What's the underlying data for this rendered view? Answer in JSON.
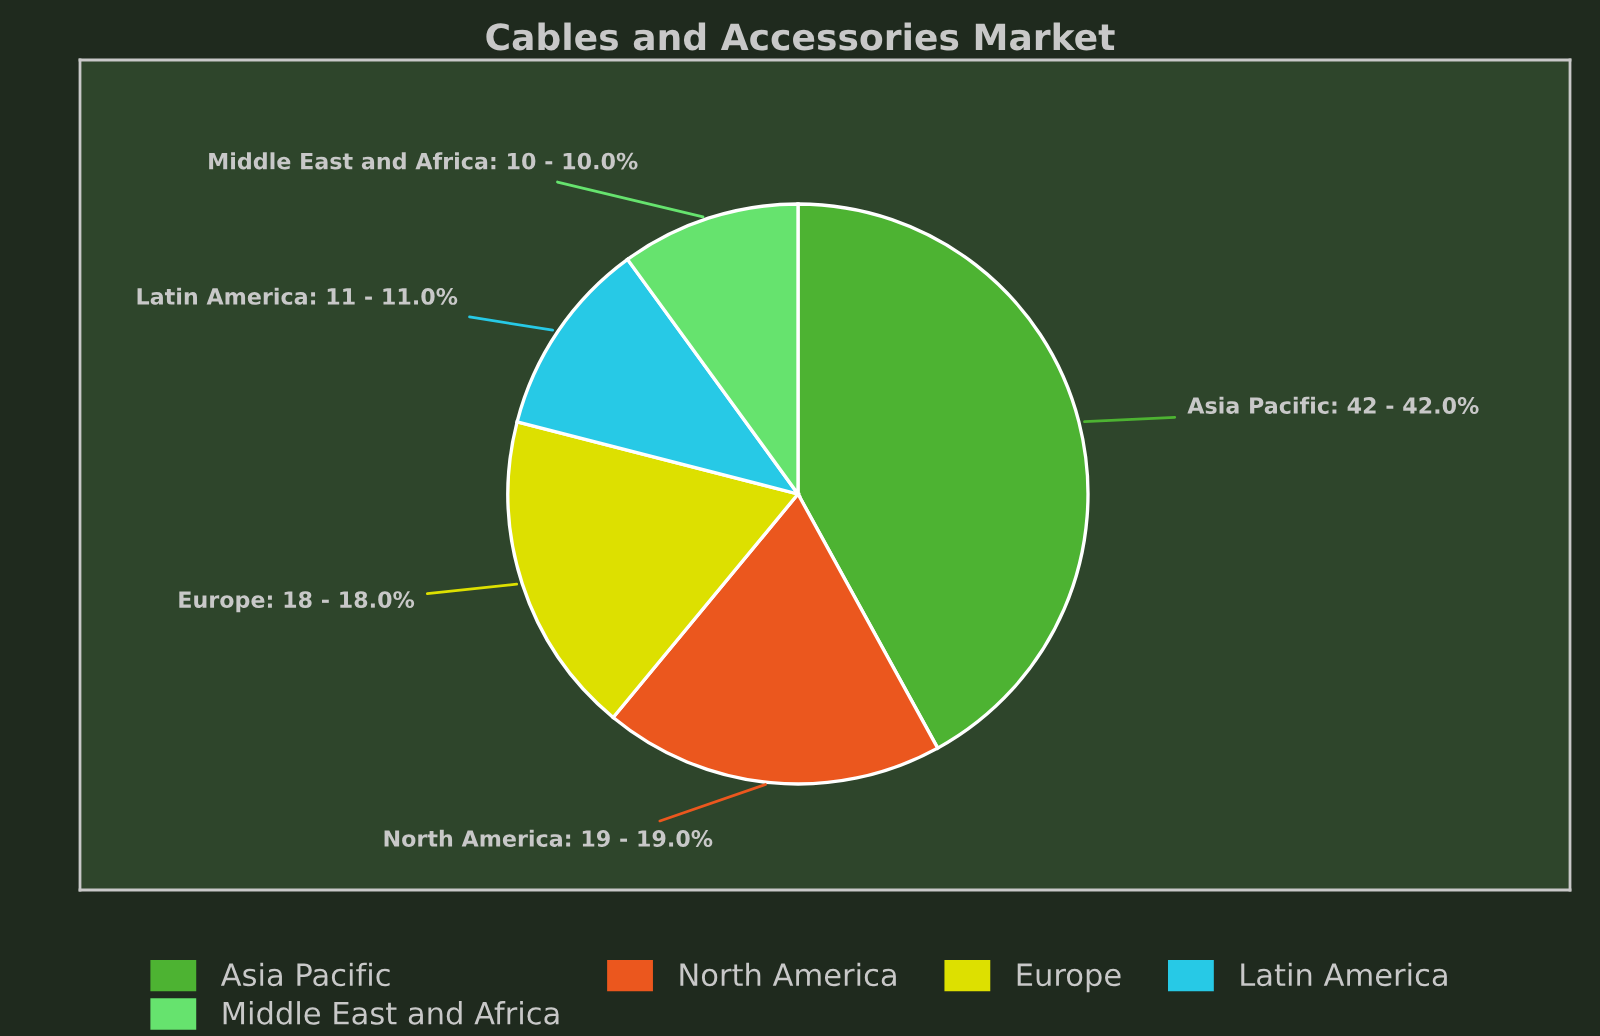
{
  "chart_data": {
    "type": "pie",
    "title": "Cables and Accessories Market",
    "categories": [
      "Asia Pacific",
      "North America",
      "Europe",
      "Latin America",
      "Middle East and Africa"
    ],
    "values": [
      42,
      19,
      18,
      11,
      10
    ],
    "colors": [
      "#4db332",
      "#eb571e",
      "#dde000",
      "#27c9e6",
      "#66e36e"
    ],
    "value_labels": [
      "Asia Pacific: 42 - 42.0%",
      "North America: 19 - 19.0%",
      "Europe: 18 - 18.0%",
      "Latin America: 11 - 11.0%",
      "Middle East and Africa: 10 - 10.0%"
    ],
    "legend": "bottom"
  }
}
